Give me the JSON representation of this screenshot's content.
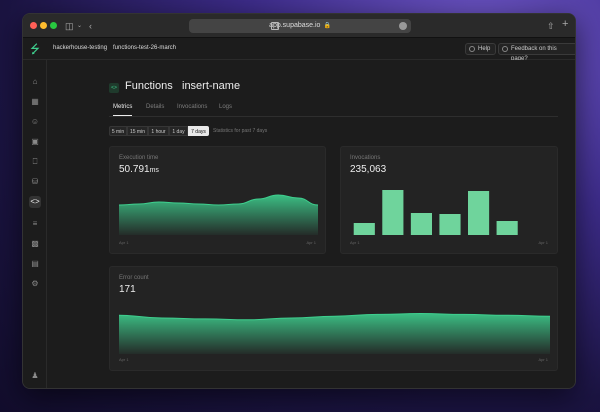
{
  "browser": {
    "url": "app.supabase.io"
  },
  "header": {
    "project": "hackerhouse-testing",
    "function_slug": "functions-test-26-march",
    "help_label": "Help",
    "feedback_label": "Feedback on this page?"
  },
  "page": {
    "title": "Functions",
    "function_name": "insert-name"
  },
  "tabs": [
    "Metrics",
    "Details",
    "Invocations",
    "Logs"
  ],
  "time_ranges": {
    "options": [
      "5 min",
      "15 min",
      "1 hour",
      "1 day",
      "7 days"
    ],
    "selected": "7 days",
    "note": "Statistics for past 7 days"
  },
  "colors": {
    "accent": "#3ecf8e",
    "background": "#1c1c1c",
    "card": "#232323"
  },
  "cards": {
    "execution": {
      "label": "Execution time",
      "value": "50.791",
      "unit": "ms",
      "x_start": "Apr 1",
      "x_end": "Apr 1"
    },
    "invocations": {
      "label": "Invocations",
      "value": "235,063",
      "x_start": "Apr 1",
      "x_end": "Apr 1"
    },
    "errors": {
      "label": "Error count",
      "value": "171",
      "x_start": "Apr 1",
      "x_end": "Apr 1"
    }
  },
  "chart_data": [
    {
      "type": "area",
      "x": [
        0,
        1,
        2,
        3,
        4,
        5,
        6,
        7,
        8,
        9,
        10
      ],
      "values": [
        3.0,
        3.1,
        3.3,
        3.2,
        3.1,
        3.0,
        3.1,
        3.6,
        4.0,
        3.7,
        3.0
      ],
      "ylim": [
        0,
        5
      ]
    },
    {
      "type": "bar",
      "categories": [
        "1",
        "2",
        "3",
        "4",
        "5",
        "6",
        "7"
      ],
      "values": [
        1.2,
        4.5,
        2.2,
        2.1,
        4.4,
        1.4,
        0
      ],
      "ylim": [
        0,
        5
      ]
    },
    {
      "type": "area",
      "x": [
        0,
        1,
        2,
        3,
        4,
        5,
        6,
        7,
        8,
        9,
        10
      ],
      "values": [
        4.3,
        4.0,
        3.9,
        3.8,
        4.0,
        4.2,
        4.4,
        4.5,
        4.4,
        4.3,
        4.2
      ],
      "ylim": [
        0,
        6
      ]
    }
  ]
}
